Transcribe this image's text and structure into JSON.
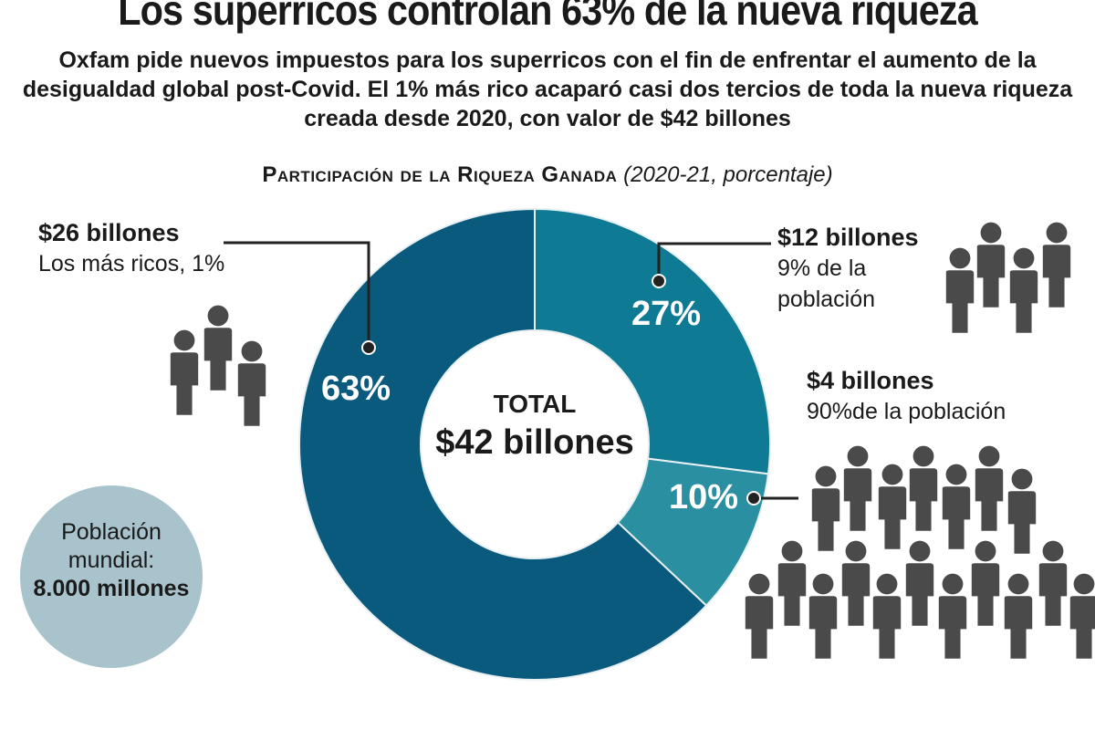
{
  "header": {
    "title": "Los superricos controlan 63% de la nueva riqueza",
    "subtitle": "Oxfam pide nuevos impuestos para los superricos con el fin de enfrentar el aumento de la desigualdad global post-Covid. El 1% más rico acaparó casi dos tercios de toda la nueva riqueza creada desde 2020, con valor de $42 billones"
  },
  "chart_data": {
    "type": "pie",
    "donut": true,
    "title": "Participación de la Riqueza Ganada",
    "title_note": "(2020-21, porcentaje)",
    "center_label": "TOTAL",
    "center_value": "$42 billones",
    "slices": [
      {
        "label": "27%",
        "value": 27,
        "amount": "$12 billones",
        "group": "9% de la población",
        "color": "#0e7a93"
      },
      {
        "label": "10%",
        "value": 10,
        "amount": "$4 billones",
        "group": "90%de la población",
        "color": "#2a8fa1"
      },
      {
        "label": "63%",
        "value": 63,
        "amount": "$26 billones",
        "group": "Los más ricos, 1%",
        "color": "#0a5a7e"
      }
    ]
  },
  "population": {
    "label": "Población mundial:",
    "value": "8.000 millones"
  },
  "icon_color": "#4a4a4a",
  "icons": [
    "person-icon"
  ]
}
